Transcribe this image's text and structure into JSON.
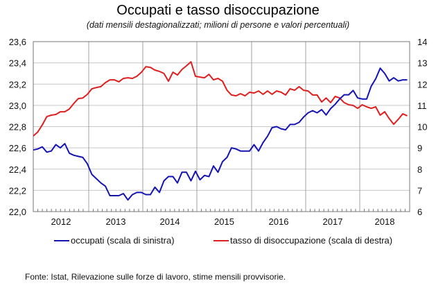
{
  "chart_data": {
    "type": "line",
    "title": "Occupati e tasso disoccupazione",
    "subtitle": "(dati mensili destagionalizzati; milioni di persone e valori percentuali)",
    "xlabel": "",
    "ylabel_left": "",
    "ylabel_right": "",
    "frequency": "monthly",
    "x_start": "2012-01",
    "n_points": 84,
    "x_tick_labels": [
      "2012",
      "2013",
      "2014",
      "2015",
      "2016",
      "2017",
      "2018"
    ],
    "y_left": {
      "range": [
        22.0,
        23.6
      ],
      "ticks": [
        "22,0",
        "22,2",
        "22,4",
        "22,6",
        "22,8",
        "23,0",
        "23,2",
        "23,4",
        "23,6"
      ]
    },
    "y_right": {
      "range": [
        6,
        14
      ],
      "ticks": [
        "6",
        "7",
        "8",
        "9",
        "10",
        "11",
        "12",
        "13",
        "14"
      ]
    },
    "grid": true,
    "legend_position": "bottom",
    "series": [
      {
        "name": "occupati (scala di sinistra)",
        "axis": "left",
        "color": "#1414b4",
        "values": [
          22.58,
          22.59,
          22.61,
          22.56,
          22.57,
          22.63,
          22.6,
          22.64,
          22.55,
          22.53,
          22.52,
          22.51,
          22.45,
          22.35,
          22.31,
          22.27,
          22.24,
          22.15,
          22.15,
          22.15,
          22.17,
          22.11,
          22.16,
          22.18,
          22.18,
          22.16,
          22.16,
          22.23,
          22.18,
          22.29,
          22.33,
          22.33,
          22.27,
          22.37,
          22.37,
          22.29,
          22.38,
          22.3,
          22.34,
          22.33,
          22.43,
          22.37,
          22.47,
          22.51,
          22.6,
          22.59,
          22.57,
          22.57,
          22.57,
          22.63,
          22.57,
          22.65,
          22.71,
          22.79,
          22.8,
          22.78,
          22.77,
          22.82,
          22.82,
          22.84,
          22.89,
          22.93,
          22.95,
          22.93,
          22.96,
          22.91,
          22.97,
          23.01,
          23.06,
          23.1,
          23.1,
          23.14,
          23.07,
          23.06,
          23.06,
          23.18,
          23.25,
          23.35,
          23.3,
          23.23,
          23.26,
          23.23,
          23.24,
          23.24
        ]
      },
      {
        "name": "tasso di disoccupazione (scala di destra)",
        "axis": "right",
        "color": "#e01e1e",
        "values": [
          9.56,
          9.75,
          10.08,
          10.47,
          10.54,
          10.57,
          10.7,
          10.7,
          10.83,
          11.09,
          11.32,
          11.35,
          11.52,
          11.78,
          11.84,
          11.88,
          12.07,
          12.2,
          12.2,
          12.11,
          12.27,
          12.3,
          12.27,
          12.37,
          12.56,
          12.82,
          12.79,
          12.66,
          12.6,
          12.5,
          12.14,
          12.56,
          12.43,
          12.69,
          12.86,
          13.05,
          12.37,
          12.33,
          12.3,
          12.46,
          12.2,
          12.27,
          12.14,
          11.71,
          11.49,
          11.45,
          11.55,
          11.45,
          11.62,
          11.58,
          11.68,
          11.52,
          11.68,
          11.52,
          11.68,
          11.62,
          11.49,
          11.78,
          11.71,
          11.88,
          11.71,
          11.68,
          11.49,
          11.49,
          11.16,
          11.35,
          11.13,
          11.42,
          11.35,
          11.13,
          11.03,
          11.0,
          10.86,
          11.03,
          10.93,
          10.86,
          10.93,
          10.54,
          10.7,
          10.38,
          10.11,
          10.34,
          10.6,
          10.51
        ]
      }
    ]
  },
  "legend": {
    "occupati": "occupati (scala di sinistra)",
    "disoccupazione": "tasso di disoccupazione (scala di destra)"
  },
  "footer": {
    "source": "Fonte: Istat, Rilevazione sulle forze di lavoro, stime mensili provvisorie."
  },
  "colors": {
    "occupati": "#1414b4",
    "disoccupazione": "#e01e1e",
    "grid": "#c8c8c8",
    "axis": "#777777"
  }
}
